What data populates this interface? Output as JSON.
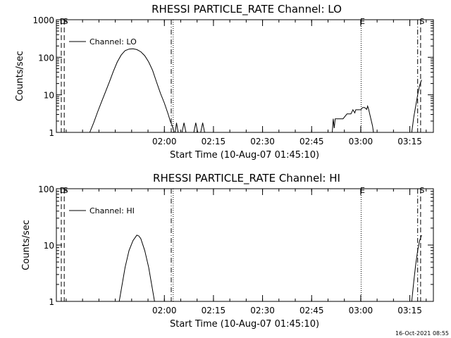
{
  "timestamp": "16-Oct-2021 08:55",
  "chart_data": [
    {
      "type": "line",
      "title": "RHESSI PARTICLE_RATE Channel: LO",
      "xlabel": "Start Time (10-Aug-07 01:45:10)",
      "ylabel": "Counts/sec",
      "yscale": "log",
      "ylim": [
        1,
        1000
      ],
      "xlim": [
        1.45,
        3.37
      ],
      "x_unit": "hours since 00:00 UT on 10-Aug-07",
      "xticks": [
        2.0,
        2.25,
        2.5,
        2.75,
        3.0,
        3.25
      ],
      "xticklabels": [
        "02:00",
        "02:15",
        "02:30",
        "02:45",
        "03:00",
        "03:15"
      ],
      "yticks": [
        1,
        10,
        100,
        1000
      ],
      "yticklabels": [
        "1",
        "10",
        "100",
        "1000"
      ],
      "legend": {
        "position": "top-left",
        "entries": [
          "Channel: LO"
        ]
      },
      "grid": false,
      "event_markers": [
        {
          "x": 1.475,
          "style": "dashed",
          "label": "D"
        },
        {
          "x": 1.49,
          "style": "dashed",
          "label": "S"
        },
        {
          "x": 2.035,
          "style": "dashdot",
          "label": ""
        },
        {
          "x": 2.045,
          "style": "dotted",
          "label": ""
        },
        {
          "x": 3.002,
          "style": "dotted",
          "label": "E"
        },
        {
          "x": 3.29,
          "style": "dashdot",
          "label": ""
        },
        {
          "x": 3.305,
          "style": "dashed",
          "label": "S"
        }
      ],
      "series": [
        {
          "name": "Channel: LO",
          "segments": [
            {
              "x": [
                1.62,
                1.64,
                1.66,
                1.68,
                1.7,
                1.72,
                1.74,
                1.76,
                1.78,
                1.8,
                1.82,
                1.84,
                1.86,
                1.88,
                1.9,
                1.92,
                1.94,
                1.96,
                1.98,
                2.0,
                2.02,
                2.03,
                2.04,
                2.05
              ],
              "y": [
                1,
                1.8,
                3.5,
                6.5,
                12,
                22,
                42,
                75,
                115,
                150,
                165,
                168,
                160,
                140,
                110,
                75,
                45,
                22,
                11,
                6,
                3,
                2,
                1.5,
                1
              ]
            },
            {
              "x": [
                2.055,
                2.062,
                2.07
              ],
              "y": [
                1,
                1.8,
                1
              ]
            },
            {
              "x": [
                2.09,
                2.1,
                2.11
              ],
              "y": [
                1,
                1.8,
                1
              ]
            },
            {
              "x": [
                2.15,
                2.16,
                2.17
              ],
              "y": [
                1,
                1.8,
                1
              ]
            },
            {
              "x": [
                2.185,
                2.195,
                2.205
              ],
              "y": [
                1,
                1.8,
                1
              ]
            },
            {
              "x": [
                2.855,
                2.86,
                2.865,
                2.87,
                2.875,
                2.88,
                2.91,
                2.93,
                2.95,
                2.96,
                2.97,
                2.975,
                2.98,
                2.99,
                3.0,
                3.01,
                3.02,
                3.03,
                3.035,
                3.04,
                3.05,
                3.06,
                3.065
              ],
              "y": [
                1,
                2.3,
                1.3,
                2.3,
                2.3,
                2.3,
                2.3,
                3.1,
                3.1,
                4,
                3.3,
                4,
                4,
                4,
                4,
                4.6,
                4.6,
                4.1,
                5,
                4.2,
                2.5,
                1.5,
                1
              ]
            },
            {
              "x": [
                3.26,
                3.27,
                3.28,
                3.29,
                3.3,
                3.31
              ],
              "y": [
                1,
                2.5,
                5,
                10,
                18,
                25
              ]
            }
          ]
        }
      ]
    },
    {
      "type": "line",
      "title": "RHESSI PARTICLE_RATE Channel: HI",
      "xlabel": "Start Time (10-Aug-07 01:45:10)",
      "ylabel": "Counts/sec",
      "yscale": "log",
      "ylim": [
        1,
        100
      ],
      "xlim": [
        1.45,
        3.37
      ],
      "x_unit": "hours since 00:00 UT on 10-Aug-07",
      "xticks": [
        2.0,
        2.25,
        2.5,
        2.75,
        3.0,
        3.25
      ],
      "xticklabels": [
        "02:00",
        "02:15",
        "02:30",
        "02:45",
        "03:00",
        "03:15"
      ],
      "yticks": [
        1,
        10,
        100
      ],
      "yticklabels": [
        "1",
        "10",
        "100"
      ],
      "legend": {
        "position": "top-left",
        "entries": [
          "Channel: HI"
        ]
      },
      "grid": false,
      "event_markers": [
        {
          "x": 1.475,
          "style": "dashed",
          "label": "D"
        },
        {
          "x": 1.49,
          "style": "dashed",
          "label": "S"
        },
        {
          "x": 2.035,
          "style": "dashdot",
          "label": ""
        },
        {
          "x": 2.045,
          "style": "dotted",
          "label": ""
        },
        {
          "x": 3.002,
          "style": "dotted",
          "label": "E"
        },
        {
          "x": 3.29,
          "style": "dashdot",
          "label": ""
        },
        {
          "x": 3.305,
          "style": "dashed",
          "label": "S"
        }
      ],
      "series": [
        {
          "name": "Channel: HI",
          "segments": [
            {
              "x": [
                1.77,
                1.78,
                1.8,
                1.82,
                1.84,
                1.86,
                1.87,
                1.88,
                1.9,
                1.92,
                1.94,
                1.95
              ],
              "y": [
                1,
                1.6,
                4,
                8,
                12,
                15,
                14.5,
                13,
                8,
                4,
                1.6,
                1
              ]
            },
            {
              "x": [
                3.26,
                3.27,
                3.28,
                3.29,
                3.3,
                3.31
              ],
              "y": [
                1,
                2.2,
                4.5,
                8,
                12,
                15
              ]
            }
          ]
        }
      ]
    }
  ]
}
